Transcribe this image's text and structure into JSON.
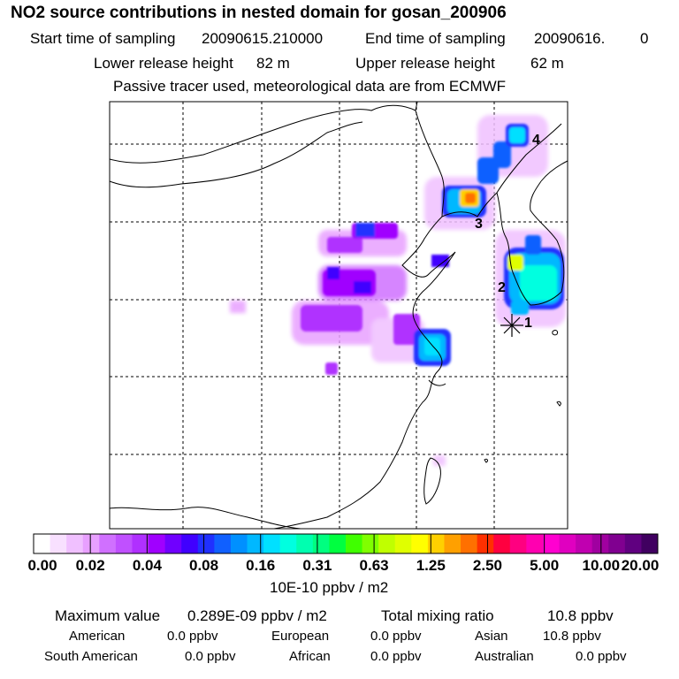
{
  "header": {
    "title": "NO2 source contributions in nested domain for gosan_200906",
    "start_label": "Start time of sampling",
    "start_value": "20090615.210000",
    "end_label": "End time of sampling",
    "end_value": "20090616.",
    "end_value_suffix": "0",
    "lower_label": "Lower release height",
    "lower_value": "82 m",
    "upper_label": "Upper release height",
    "upper_value": "62 m",
    "note": "Passive tracer used, meteorological data are from ECMWF"
  },
  "chart_data": {
    "type": "heatmap",
    "title": "NO2 source contributions in nested domain for gosan_200906",
    "units": "10E-10 ppbv / m2",
    "color_scale": {
      "ticks": [
        "0.00",
        "0.02",
        "0.04",
        "0.08",
        "0.16",
        "0.31",
        "0.63",
        "1.25",
        "2.50",
        "5.00",
        "10.00",
        "20.00"
      ],
      "colors": [
        "#ffffff",
        "#f8e0ff",
        "#f0c0ff",
        "#e8a0ff",
        "#d070ff",
        "#c050ff",
        "#b030ff",
        "#a000ff",
        "#7000ff",
        "#4000ff",
        "#2030ff",
        "#1060ff",
        "#0090ff",
        "#00b8ff",
        "#00e0ff",
        "#00ffe0",
        "#00ffb0",
        "#00ff80",
        "#00ff40",
        "#40ff00",
        "#80ff00",
        "#c0ff00",
        "#e0ff00",
        "#ffff00",
        "#ffd000",
        "#ffa000",
        "#ff7000",
        "#ff3000",
        "#ff0040",
        "#ff0080",
        "#ff00b0",
        "#ff00d0",
        "#e000c0",
        "#c000b0",
        "#a000a0",
        "#800090",
        "#600080",
        "#400060"
      ]
    },
    "markers": [
      "1",
      "2",
      "3",
      "4"
    ]
  },
  "footer": {
    "max_label": "Maximum value",
    "max_value": "0.289E-09 ppbv / m2",
    "total_label": "Total mixing ratio",
    "total_value": "10.8 ppbv",
    "regions": [
      {
        "name": "American",
        "value": "0.0 ppbv"
      },
      {
        "name": "European",
        "value": "0.0 ppbv"
      },
      {
        "name": "Asian",
        "value": "10.8 ppbv"
      },
      {
        "name": "South American",
        "value": "0.0 ppbv"
      },
      {
        "name": "African",
        "value": "0.0 ppbv"
      },
      {
        "name": "Australian",
        "value": "0.0 ppbv"
      }
    ]
  }
}
